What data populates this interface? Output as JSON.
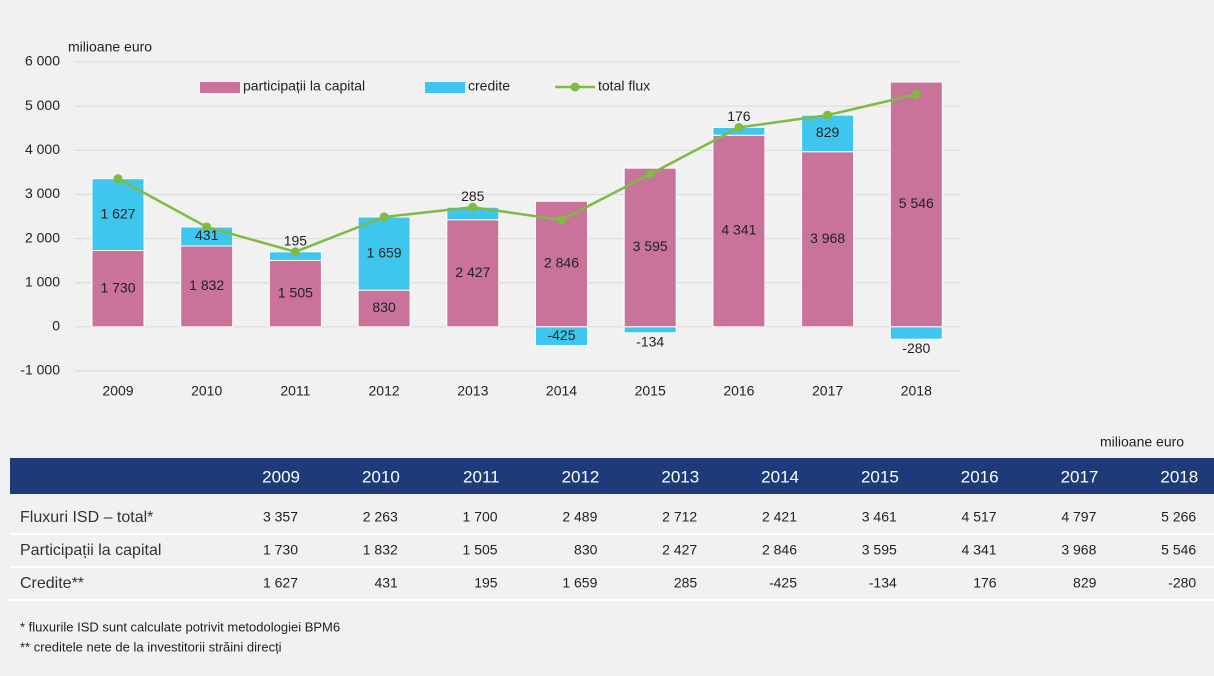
{
  "chart_data": {
    "type": "stacked_bar_line",
    "y_label": "milioane euro",
    "categories": [
      "2009",
      "2010",
      "2011",
      "2012",
      "2013",
      "2014",
      "2015",
      "2016",
      "2017",
      "2018"
    ],
    "series": [
      {
        "name": "participații la capital",
        "color": "#c9739b",
        "kind": "bar",
        "values": [
          1730,
          1832,
          1505,
          830,
          2427,
          2846,
          3595,
          4341,
          3968,
          5546
        ],
        "value_labels": [
          "1 730",
          "1 832",
          "1 505",
          "830",
          "2 427",
          "2 846",
          "3 595",
          "4 341",
          "3 968",
          "5 546"
        ]
      },
      {
        "name": "credite",
        "color": "#3ec6ee",
        "kind": "bar",
        "values": [
          1627,
          431,
          195,
          1659,
          285,
          -425,
          -134,
          176,
          829,
          -280
        ],
        "value_labels": [
          "1 627",
          "431",
          "195",
          "1 659",
          "285",
          "-425",
          "-134",
          "176",
          "829",
          "-280"
        ]
      },
      {
        "name": "total flux",
        "color": "#7dbb42",
        "kind": "line",
        "values": [
          3357,
          2263,
          1700,
          2489,
          2712,
          2421,
          3461,
          4517,
          4797,
          5266
        ]
      }
    ],
    "ylim": [
      -1000,
      6000
    ],
    "yticks": [
      {
        "value": -1000,
        "label": "-1 000"
      },
      0,
      {
        "value": 1000,
        "label": "1 000"
      },
      {
        "value": 2000,
        "label": "2 000"
      },
      {
        "value": 3000,
        "label": "3 000"
      },
      {
        "value": 4000,
        "label": "4 000"
      },
      {
        "value": 5000,
        "label": "5 000"
      },
      {
        "value": 6000,
        "label": "6 000"
      }
    ],
    "grid": true
  },
  "table": {
    "unit": "milioane euro",
    "columns": [
      "2009",
      "2010",
      "2011",
      "2012",
      "2013",
      "2014",
      "2015",
      "2016",
      "2017",
      "2018"
    ],
    "rows": [
      {
        "label": "Fluxuri ISD – total*",
        "cells": [
          "3 357",
          "2 263",
          "1 700",
          "2 489",
          "2 712",
          "2 421",
          "3 461",
          "4 517",
          "4 797",
          "5 266"
        ]
      },
      {
        "label": "Participații la capital",
        "cells": [
          "1 730",
          "1 832",
          "1 505",
          "830",
          "2 427",
          "2 846",
          "3 595",
          "4 341",
          "3 968",
          "5 546"
        ]
      },
      {
        "label": "Credite**",
        "cells": [
          "1 627",
          "431",
          "195",
          "1 659",
          "285",
          "-425",
          "-134",
          "176",
          "829",
          "-280"
        ]
      }
    ]
  },
  "notes": [
    "* fluxurile ISD sunt calculate potrivit metodologiei BPM6",
    "** creditele nete de la investitorii străini direcți"
  ]
}
